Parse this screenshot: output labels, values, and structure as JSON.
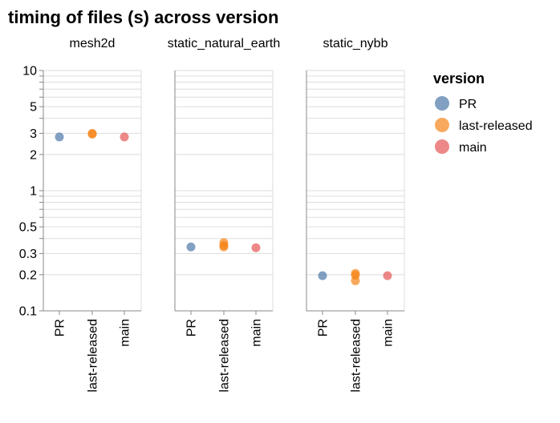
{
  "chart_data": {
    "type": "scatter",
    "title": "timing of files (s) across version",
    "y_scale": "log",
    "ylim": [
      0.1,
      10
    ],
    "y_ticks": [
      0.1,
      0.2,
      0.3,
      0.5,
      1,
      2,
      3,
      5,
      10
    ],
    "y_tick_labels": [
      "0.1",
      "0.2",
      "0.3",
      "0.5",
      "1",
      "2",
      "3",
      "5",
      "10"
    ],
    "grid": true,
    "categories": [
      "PR",
      "last-released",
      "main"
    ],
    "facets": [
      {
        "name": "mesh2d",
        "points": [
          {
            "x": "PR",
            "y": 2.8
          },
          {
            "x": "last-released",
            "y": 3.0
          },
          {
            "x": "last-released",
            "y": 2.95
          },
          {
            "x": "main",
            "y": 2.8
          }
        ]
      },
      {
        "name": "static_natural_earth",
        "points": [
          {
            "x": "PR",
            "y": 0.34
          },
          {
            "x": "last-released",
            "y": 0.37
          },
          {
            "x": "last-released",
            "y": 0.35
          },
          {
            "x": "last-released",
            "y": 0.34
          },
          {
            "x": "main",
            "y": 0.335
          }
        ]
      },
      {
        "name": "static_nybb",
        "points": [
          {
            "x": "PR",
            "y": 0.196
          },
          {
            "x": "last-released",
            "y": 0.205
          },
          {
            "x": "last-released",
            "y": 0.198
          },
          {
            "x": "last-released",
            "y": 0.178
          },
          {
            "x": "main",
            "y": 0.196
          }
        ]
      }
    ],
    "legend": {
      "title": "version",
      "position": "right",
      "entries": [
        {
          "label": "PR",
          "color": "#4c78a8"
        },
        {
          "label": "last-released",
          "color": "#f58518"
        },
        {
          "label": "main",
          "color": "#e45756"
        }
      ]
    }
  }
}
